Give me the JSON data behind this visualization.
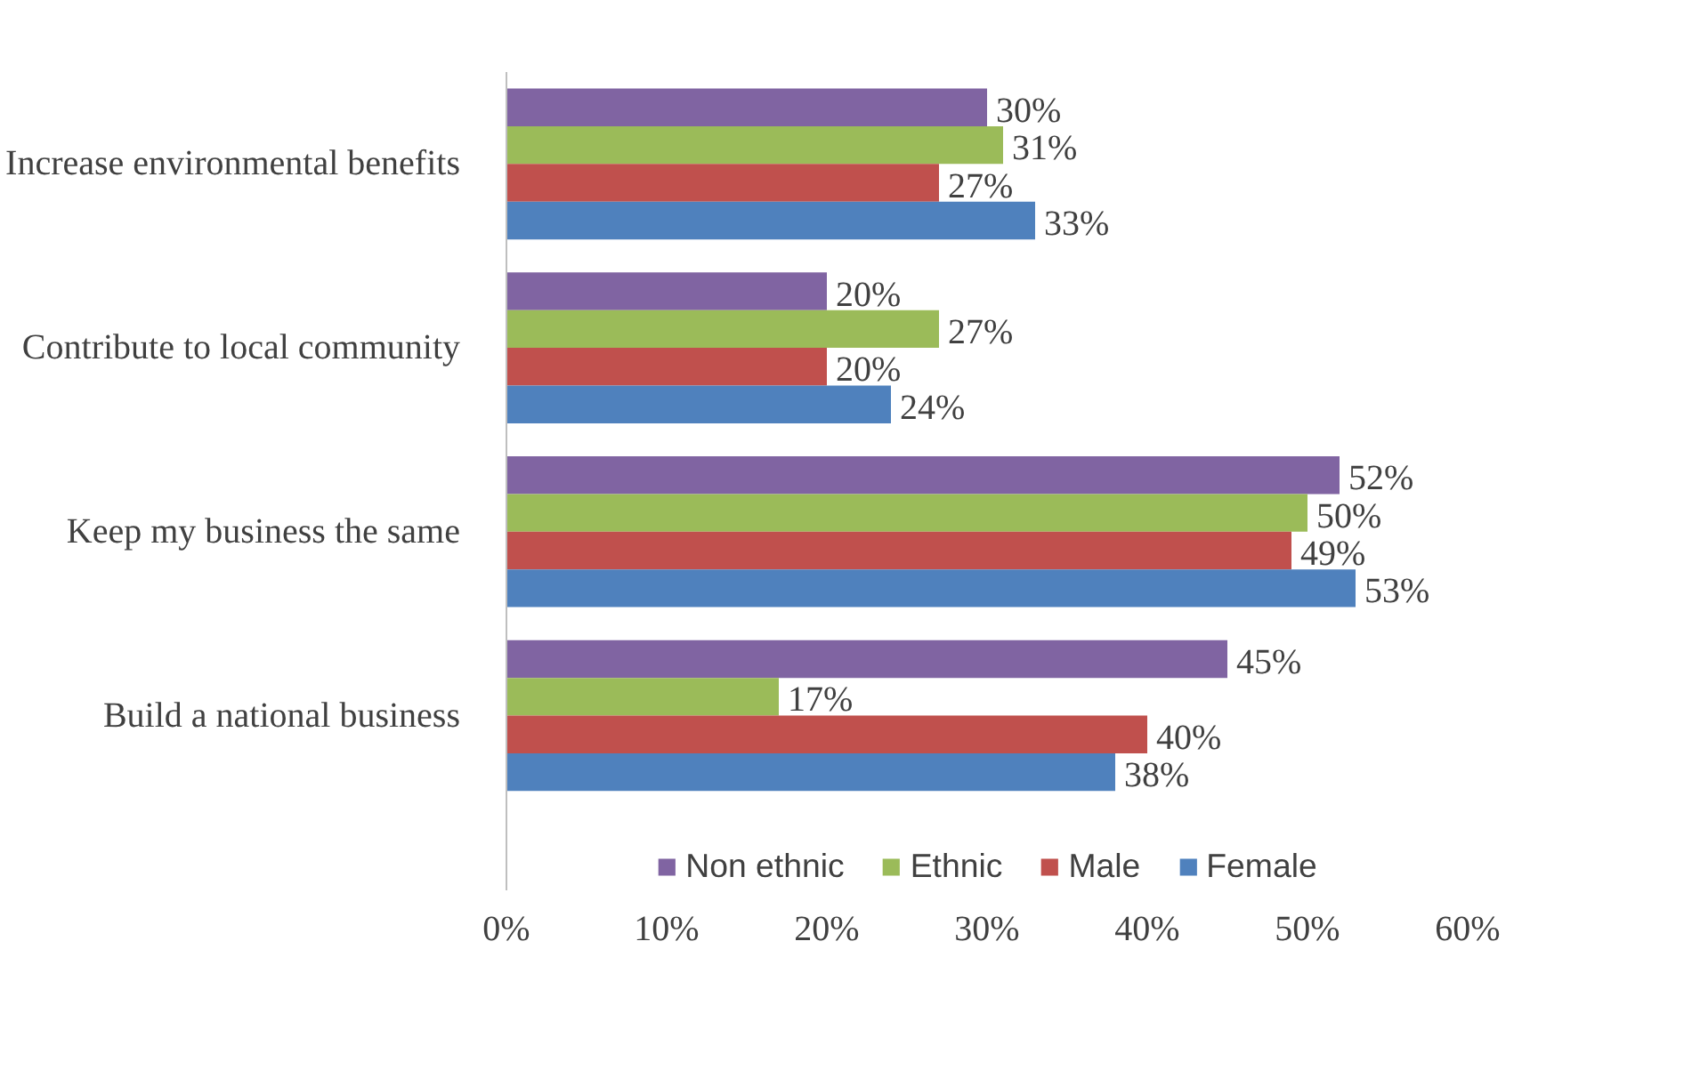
{
  "chart_data": {
    "type": "bar",
    "orientation": "horizontal",
    "categories": [
      "Increase environmental benefits",
      "Contribute to local community",
      "Keep my business the same",
      "Build a national business"
    ],
    "series": [
      {
        "name": "Non ethnic",
        "color": "#8064a2",
        "values": [
          30,
          20,
          52,
          45
        ],
        "value_labels": [
          "30%",
          "20%",
          "52%",
          "45%"
        ]
      },
      {
        "name": "Ethnic",
        "color": "#9bbb59",
        "values": [
          31,
          27,
          50,
          17
        ],
        "value_labels": [
          "31%",
          "27%",
          "50%",
          "17%"
        ]
      },
      {
        "name": "Male",
        "color": "#c0504d",
        "values": [
          27,
          20,
          49,
          40
        ],
        "value_labels": [
          "27%",
          "20%",
          "49%",
          "40%"
        ]
      },
      {
        "name": "Female",
        "color": "#4f81bd",
        "values": [
          33,
          24,
          53,
          38
        ],
        "value_labels": [
          "33%",
          "24%",
          "53%",
          "38%"
        ]
      }
    ],
    "xlim": [
      0,
      60
    ],
    "xticks": [
      {
        "value": 0,
        "label": "0%"
      },
      {
        "value": 10,
        "label": "10%"
      },
      {
        "value": 20,
        "label": "20%"
      },
      {
        "value": 30,
        "label": "30%"
      },
      {
        "value": 40,
        "label": "40%"
      },
      {
        "value": 50,
        "label": "50%"
      },
      {
        "value": 60,
        "label": "60%"
      }
    ],
    "grid": false,
    "legend": "bottom"
  }
}
